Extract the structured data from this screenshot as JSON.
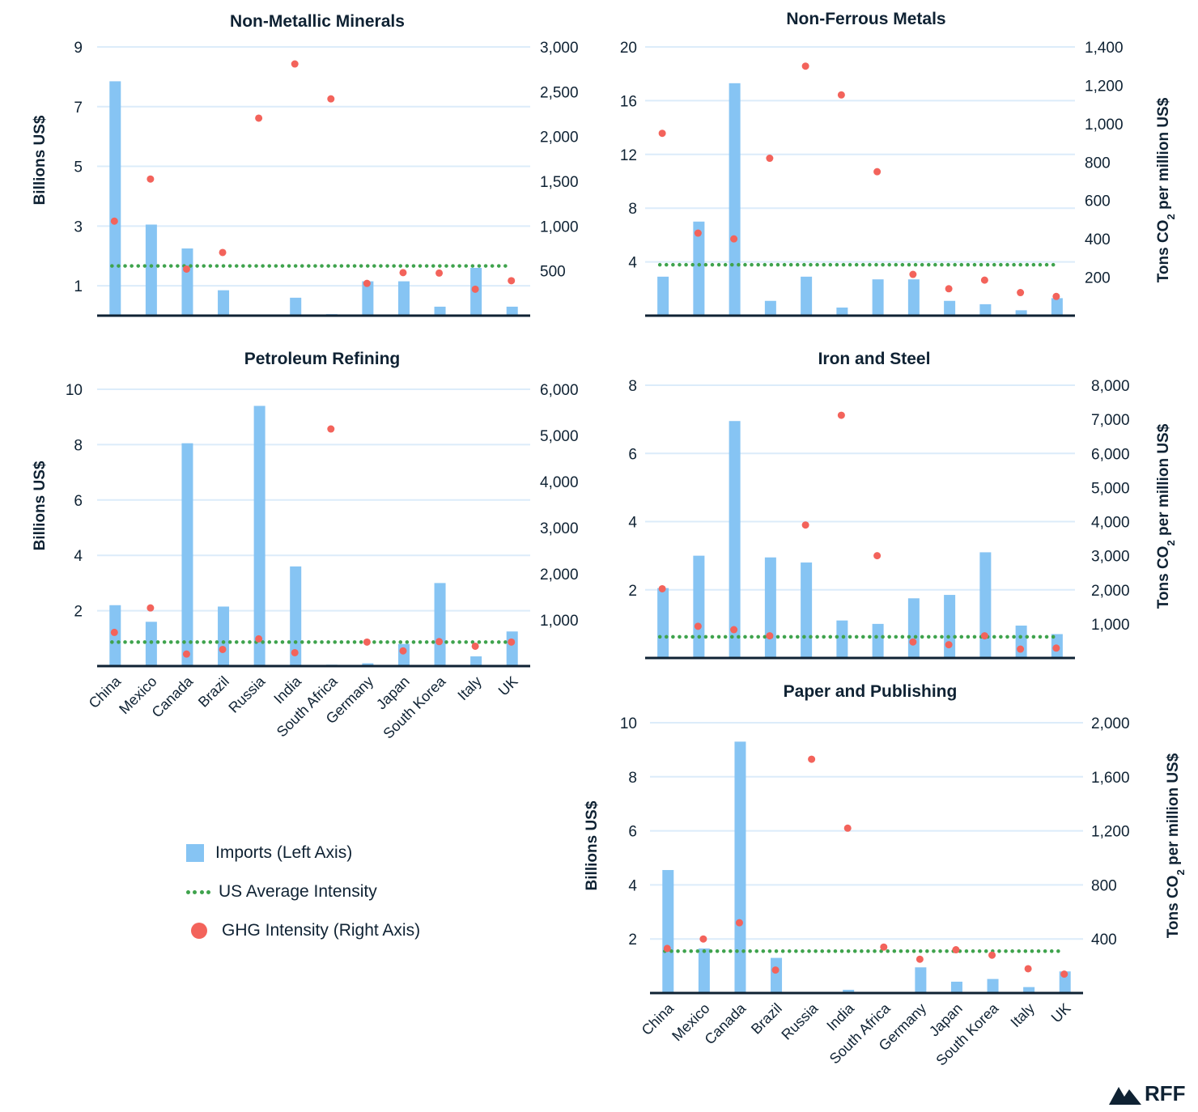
{
  "colors": {
    "bar": "#86c4f3",
    "avg": "#3fa34d",
    "ghg": "#f3635b",
    "axis": "#0f2233",
    "grid": "#dcecfa"
  },
  "legend": {
    "imports": "Imports (Left Axis)",
    "average": "US Average Intensity",
    "ghg": "GHG Intensity (Right Axis)"
  },
  "logo": {
    "text": "RFF",
    "icon": "mountain-icon"
  },
  "chart_data": [
    {
      "id": "non-metallic-minerals",
      "type": "bar",
      "title": "Non-Metallic Minerals",
      "ylabel": "Billions US$",
      "y2label_main": "Tons CO",
      "y2label_sub": "2",
      "y2label_rest": " per million US$",
      "show_y2label": false,
      "categories": [
        "China",
        "Mexico",
        "Canada",
        "Brazil",
        "Russia",
        "India",
        "South Africa",
        "Germany",
        "Japan",
        "South Korea",
        "Italy",
        "UK"
      ],
      "show_categories": false,
      "ylim": [
        0,
        9
      ],
      "yticks": [
        1,
        3,
        5,
        7,
        9
      ],
      "y2lim": [
        0,
        3000
      ],
      "y2ticks": [
        500,
        1000,
        1500,
        2000,
        2500,
        3000
      ],
      "series": [
        {
          "name": "Imports (Left Axis)",
          "axis": "left",
          "values": [
            7.85,
            3.05,
            2.25,
            0.85,
            0,
            0.6,
            0.05,
            1.15,
            1.15,
            0.3,
            1.6,
            0.3
          ]
        },
        {
          "name": "GHG Intensity (Right Axis)",
          "axis": "right",
          "values": [
            1055,
            1525,
            520,
            705,
            2205,
            2810,
            2420,
            360,
            480,
            475,
            295,
            390
          ]
        },
        {
          "name": "US Average Intensity",
          "axis": "right",
          "value": 555
        }
      ]
    },
    {
      "id": "non-ferrous-metals",
      "type": "bar",
      "title": "Non-Ferrous Metals",
      "ylabel": "",
      "y2label_main": "Tons CO",
      "y2label_sub": "2",
      "y2label_rest": " per million US$",
      "show_y2label": true,
      "categories": [
        "China",
        "Mexico",
        "Canada",
        "Brazil",
        "Russia",
        "India",
        "South Africa",
        "Germany",
        "Japan",
        "South Korea",
        "Italy",
        "UK"
      ],
      "show_categories": false,
      "ylim": [
        0,
        20
      ],
      "yticks": [
        4,
        8,
        12,
        16,
        20
      ],
      "y2lim": [
        0,
        1400
      ],
      "y2ticks": [
        200,
        400,
        600,
        800,
        1000,
        1200,
        1400
      ],
      "series": [
        {
          "name": "Imports (Left Axis)",
          "axis": "left",
          "values": [
            2.9,
            7.0,
            17.3,
            1.1,
            2.9,
            0.6,
            2.7,
            2.7,
            1.1,
            0.85,
            0.4,
            1.3
          ]
        },
        {
          "name": "GHG Intensity (Right Axis)",
          "axis": "right",
          "values": [
            950,
            430,
            400,
            820,
            1300,
            1150,
            750,
            215,
            140,
            185,
            120,
            100
          ]
        },
        {
          "name": "US Average Intensity",
          "axis": "right",
          "value": 265
        }
      ]
    },
    {
      "id": "petroleum-refining",
      "type": "bar",
      "title": "Petroleum Refining",
      "ylabel": "Billions US$",
      "y2label_main": "Tons CO",
      "y2label_sub": "2",
      "y2label_rest": " per million US$",
      "show_y2label": false,
      "categories": [
        "China",
        "Mexico",
        "Canada",
        "Brazil",
        "Russia",
        "India",
        "South Africa",
        "Germany",
        "Japan",
        "South Korea",
        "Italy",
        "UK"
      ],
      "show_categories": true,
      "ylim": [
        0,
        10
      ],
      "yticks": [
        2,
        4,
        6,
        8,
        10
      ],
      "y2lim": [
        0,
        6000
      ],
      "y2ticks": [
        1000,
        2000,
        3000,
        4000,
        5000,
        6000
      ],
      "series": [
        {
          "name": "Imports (Left Axis)",
          "axis": "left",
          "values": [
            2.2,
            1.6,
            8.05,
            2.15,
            9.4,
            3.6,
            0.05,
            0.1,
            0.8,
            3.0,
            0.35,
            1.25
          ]
        },
        {
          "name": "GHG Intensity (Right Axis)",
          "axis": "right",
          "values": [
            730,
            1260,
            260,
            360,
            590,
            290,
            5140,
            520,
            330,
            530,
            430,
            520
          ]
        },
        {
          "name": "US Average Intensity",
          "axis": "right",
          "value": 520
        }
      ]
    },
    {
      "id": "iron-and-steel",
      "type": "bar",
      "title": "Iron and Steel",
      "ylabel": "",
      "y2label_main": "Tons CO",
      "y2label_sub": "2",
      "y2label_rest": " per million US$",
      "show_y2label": true,
      "categories": [
        "China",
        "Mexico",
        "Canada",
        "Brazil",
        "Russia",
        "India",
        "South Africa",
        "Germany",
        "Japan",
        "South Korea",
        "Italy",
        "UK"
      ],
      "show_categories": false,
      "ylim": [
        0,
        8
      ],
      "yticks": [
        2,
        4,
        6,
        8
      ],
      "y2lim": [
        0,
        8000
      ],
      "y2ticks": [
        1000,
        2000,
        3000,
        4000,
        5000,
        6000,
        7000,
        8000
      ],
      "series": [
        {
          "name": "Imports (Left Axis)",
          "axis": "left",
          "values": [
            2.05,
            3.0,
            6.95,
            2.95,
            2.8,
            1.1,
            1.0,
            1.75,
            1.85,
            3.1,
            0.95,
            0.7
          ]
        },
        {
          "name": "GHG Intensity (Right Axis)",
          "axis": "right",
          "values": [
            2030,
            930,
            830,
            650,
            3900,
            7120,
            3000,
            470,
            390,
            650,
            260,
            290
          ]
        },
        {
          "name": "US Average Intensity",
          "axis": "right",
          "value": 620
        }
      ]
    },
    {
      "id": "paper-and-publishing",
      "type": "bar",
      "title": "Paper and Publishing",
      "ylabel": "Billions US$",
      "y2label_main": "Tons CO",
      "y2label_sub": "2",
      "y2label_rest": " per million US$",
      "show_y2label": true,
      "categories": [
        "China",
        "Mexico",
        "Canada",
        "Brazil",
        "Russia",
        "India",
        "South Africa",
        "Germany",
        "Japan",
        "South Korea",
        "Italy",
        "UK"
      ],
      "show_categories": true,
      "ylim": [
        0,
        10
      ],
      "yticks": [
        2,
        4,
        6,
        8,
        10
      ],
      "y2lim": [
        0,
        2000
      ],
      "y2ticks": [
        400,
        800,
        1200,
        1600,
        2000
      ],
      "series": [
        {
          "name": "Imports (Left Axis)",
          "axis": "left",
          "values": [
            4.55,
            1.65,
            9.3,
            1.3,
            0,
            0.12,
            0,
            0.95,
            0.42,
            0.52,
            0.22,
            0.8
          ]
        },
        {
          "name": "GHG Intensity (Right Axis)",
          "axis": "right",
          "values": [
            330,
            400,
            520,
            170,
            1730,
            1220,
            340,
            250,
            320,
            280,
            180,
            140
          ]
        },
        {
          "name": "US Average Intensity",
          "axis": "right",
          "value": 310
        }
      ]
    }
  ]
}
